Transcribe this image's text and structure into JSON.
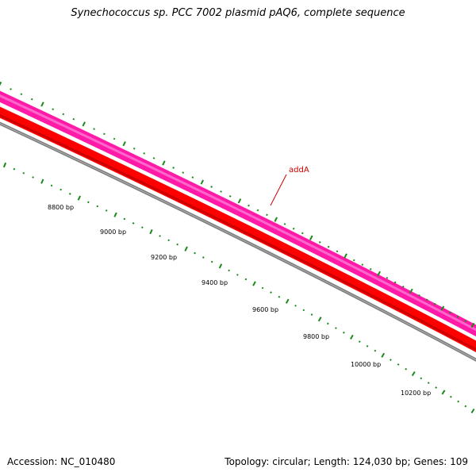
{
  "title": "Synechococcus sp. PCC 7002 plasmid pAQ6, complete sequence",
  "footer": {
    "accession": "Accession: NC_010480",
    "summary": "Topology: circular; Length: 124,030 bp; Genes: 109"
  },
  "map": {
    "tick_labels": [
      "8800 bp",
      "9000 bp",
      "9200 bp",
      "9400 bp",
      "9600 bp",
      "9800 bp",
      "10000 bp",
      "10200 bp"
    ],
    "feature_labels": [
      "addA"
    ]
  },
  "colors": {
    "feature_pink": "#ff1aa8",
    "feature_red": "#ff0000",
    "backbone": "#7f7f7f",
    "ticks": "#1a8a1a",
    "feature_label": "#cc0000"
  }
}
